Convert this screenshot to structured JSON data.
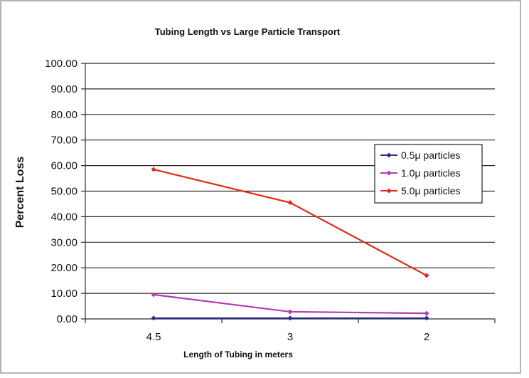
{
  "chart_data": {
    "type": "line",
    "title": "Tubing Length vs Large Particle Transport",
    "xlabel": "Length of Tubing in meters",
    "ylabel": "Percent Loss",
    "categories": [
      "4.5",
      "3",
      "2"
    ],
    "ylim": [
      0,
      100
    ],
    "ytick_labels": [
      "0.00",
      "10.00",
      "20.00",
      "30.00",
      "40.00",
      "50.00",
      "60.00",
      "70.00",
      "80.00",
      "90.00",
      "100.00"
    ],
    "ytick_values": [
      0,
      10,
      20,
      30,
      40,
      50,
      60,
      70,
      80,
      90,
      100
    ],
    "grid": true,
    "legend_position": "right",
    "series": [
      {
        "name": "0.5μ particles",
        "values": [
          0.3,
          0.3,
          0.3
        ],
        "color": "#2b2b8c"
      },
      {
        "name": "1.0μ particles",
        "values": [
          9.5,
          2.8,
          2.2
        ],
        "color": "#b23ab2"
      },
      {
        "name": "5.0μ particles",
        "values": [
          58.5,
          45.5,
          17.0
        ],
        "color": "#e02a1a"
      }
    ]
  }
}
